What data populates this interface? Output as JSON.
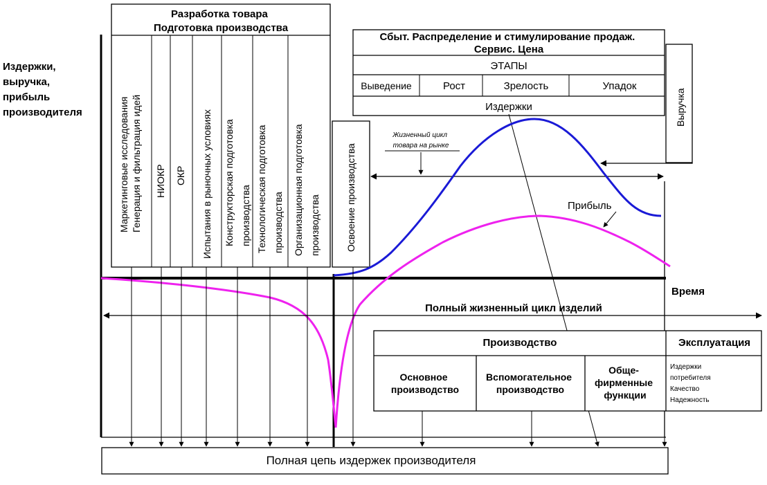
{
  "y_axis_label": [
    "Издержки,",
    "выручка,",
    "прибыль",
    "производителя"
  ],
  "time_label": "Время",
  "development": {
    "title_lines": [
      "Разработка товара",
      "Подготовка производства"
    ],
    "columns": [
      [
        "Маркетинговые исследования",
        "Генерация и фильтрация идей"
      ],
      [
        "НИОКР"
      ],
      [
        "ОКР"
      ],
      [
        "Испытания в рыночных условиях"
      ],
      [
        "Конструкторская подготовка",
        "производства"
      ],
      [
        "Технологическая подготовка",
        "производства"
      ],
      [
        "Организационная подготовка",
        "производства"
      ]
    ]
  },
  "mastering": "Освоение производства",
  "sales": {
    "title_lines": [
      "Сбыт. Распределение и стимулирование продаж.",
      "Сервис. Цена"
    ],
    "stages_header": "ЭТАПЫ",
    "stages": [
      "Выведение",
      "Рост",
      "Зрелость",
      "Упадок"
    ],
    "costs": "Издержки",
    "revenue": "Выручка"
  },
  "market_life_cycle": [
    "Жизненный цикл",
    "товара на рынке"
  ],
  "profit_label": "Прибыль",
  "full_cycle_label": "Полный жизненный цикл изделий",
  "production": {
    "header": "Производство",
    "cells": [
      [
        "Основное",
        "производство"
      ],
      [
        "Вспомогательное",
        "производство"
      ],
      [
        "Обще-",
        "фирменные",
        "функции"
      ]
    ]
  },
  "exploitation": {
    "header": "Эксплуатация",
    "items": [
      "Издержки",
      "потребителя",
      "Качество",
      "Надежность"
    ]
  },
  "full_cost_chain": "Полная цепь издержек производителя",
  "colors": {
    "revenue_curve": "#1a1ad6",
    "profit_curve": "#ee22ee",
    "lines": "#000000"
  }
}
